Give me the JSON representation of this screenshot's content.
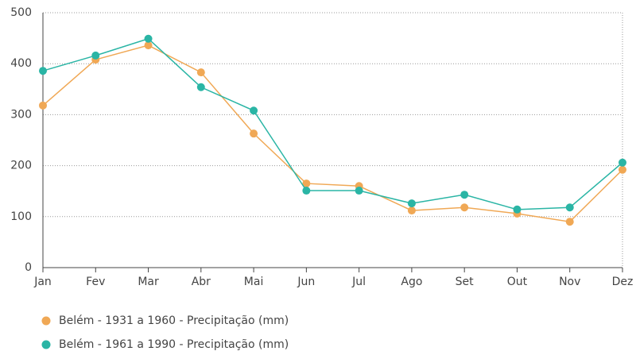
{
  "chart_data": {
    "type": "line",
    "categories": [
      "Jan",
      "Fev",
      "Mar",
      "Abr",
      "Mai",
      "Jun",
      "Jul",
      "Ago",
      "Set",
      "Out",
      "Nov",
      "Dez"
    ],
    "series": [
      {
        "name": "Belém - 1931 a 1960 - Precipitação (mm)",
        "color": "#f0a855",
        "values": [
          318,
          408,
          436,
          383,
          263,
          165,
          160,
          112,
          118,
          106,
          90,
          192
        ]
      },
      {
        "name": "Belém - 1961 a 1990 - Precipitação (mm)",
        "color": "#2ab5a5",
        "values": [
          386,
          416,
          449,
          354,
          308,
          151,
          151,
          126,
          143,
          114,
          118,
          206
        ]
      }
    ],
    "ylim": [
      0,
      500
    ],
    "yticks": [
      0,
      100,
      200,
      300,
      400,
      500
    ],
    "grid": true
  }
}
